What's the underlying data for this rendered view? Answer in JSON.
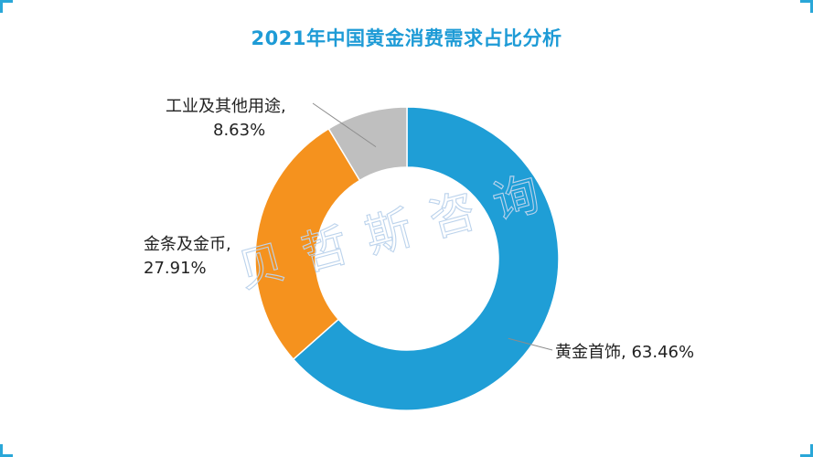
{
  "title": "2021年中国黄金消费需求占比分析",
  "watermark": "贝哲斯咨询",
  "chart_data": {
    "type": "pie",
    "variant": "donut",
    "title": "2021年中国黄金消费需求占比分析",
    "slices": [
      {
        "name": "黄金首饰",
        "value": 63.46,
        "color": "#1f9ed6",
        "label_line1": "黄金首饰, 63.46%",
        "label_line2": ""
      },
      {
        "name": "金条及金币",
        "value": 27.91,
        "color": "#f5921e",
        "label_line1": "金条及金币,",
        "label_line2": "27.91%"
      },
      {
        "name": "工业及其他用途",
        "value": 8.63,
        "color": "#bfbfbf",
        "label_line1": "工业及其他用途,",
        "label_line2": "8.63%"
      }
    ],
    "legend": "none"
  },
  "colors": {
    "accent": "#1e9bd6",
    "corner": "#2aa7d8"
  }
}
